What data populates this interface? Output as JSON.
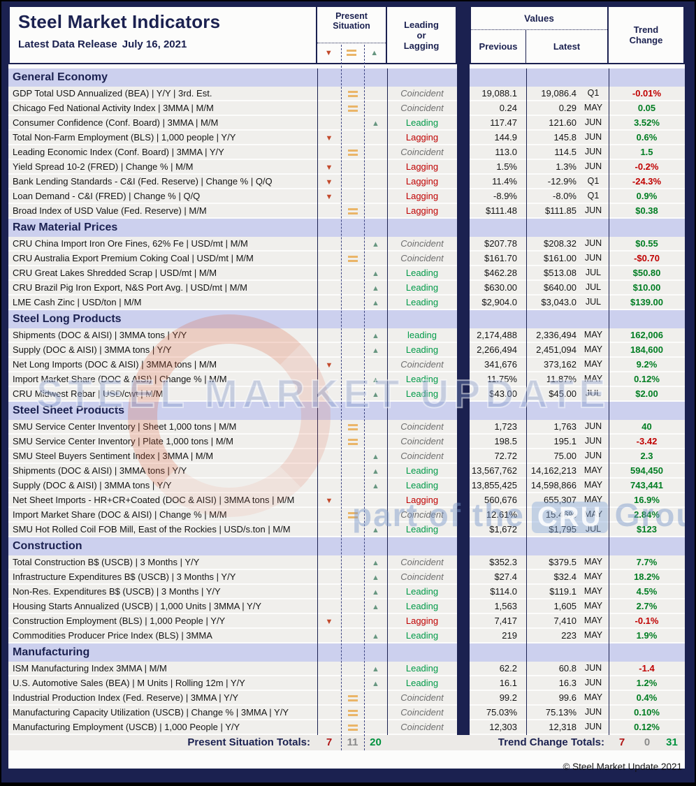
{
  "header": {
    "title": "Steel Market Indicators",
    "subtitle_label": "Latest Data Release",
    "subtitle_date": "July 16, 2021",
    "col_present_situation": "Present Situation",
    "col_leading_lagging": "Leading or Lagging",
    "col_values": "Values",
    "col_previous": "Previous",
    "col_latest": "Latest",
    "col_trend_change": "Trend Change"
  },
  "colors": {
    "frame_navy": "#1b2150",
    "section_bg": "#ccd0ee",
    "row_bg": "#f0efec",
    "leading_green": "#009a48",
    "lagging_red": "#c00000",
    "coincident_gray": "#6e6e6e",
    "trend_up_green": "#007d22",
    "trend_down_red": "#c00000",
    "arrow_down_red": "#c2492b",
    "arrow_equal_tan": "#eab568",
    "arrow_up_green": "#679680"
  },
  "sections": [
    {
      "title": "General Economy",
      "rows": [
        {
          "name": "GDP Total USD Annualized (BEA) | Y/Y | 3rd. Est.",
          "arrow": "equal",
          "classification": "Coincident",
          "previous": "19,088.1",
          "latest": "19,086.4",
          "period": "Q1",
          "trend": "-0.01%"
        },
        {
          "name": "Chicago Fed National Activity Index | 3MMA | M/M",
          "arrow": "equal",
          "classification": "Coincident",
          "previous": "0.24",
          "latest": "0.29",
          "period": "MAY",
          "trend": "0.05"
        },
        {
          "name": "Consumer Confidence (Conf. Board) | 3MMA | M/M",
          "arrow": "up",
          "classification": "Leading",
          "previous": "117.47",
          "latest": "121.60",
          "period": "JUN",
          "trend": "3.52%"
        },
        {
          "name": "Total Non-Farm Employment (BLS) | 1,000 people | Y/Y",
          "arrow": "down",
          "classification": "Lagging",
          "previous": "144.9",
          "latest": "145.8",
          "period": "JUN",
          "trend": "0.6%"
        },
        {
          "name": "Leading Economic Index (Conf. Board) | 3MMA | Y/Y",
          "arrow": "equal",
          "classification": "Coincident",
          "previous": "113.0",
          "latest": "114.5",
          "period": "JUN",
          "trend": "1.5"
        },
        {
          "name": "Yield Spread 10-2 (FRED) | Change % | M/M",
          "arrow": "down",
          "classification": "Lagging",
          "previous": "1.5%",
          "latest": "1.3%",
          "period": "JUN",
          "trend": "-0.2%"
        },
        {
          "name": "Bank Lending Standards - C&I (Fed. Reserve) | Change % | Q/Q",
          "arrow": "down",
          "classification": "Lagging",
          "previous": "11.4%",
          "latest": "-12.9%",
          "period": "Q1",
          "trend": "-24.3%"
        },
        {
          "name": "Loan Demand - C&I (FRED) | Change % | Q/Q",
          "arrow": "down",
          "classification": "Lagging",
          "previous": "-8.9%",
          "latest": "-8.0%",
          "period": "Q1",
          "trend": "0.9%"
        },
        {
          "name": "Broad Index of USD Value (Fed. Reserve) | M/M",
          "arrow": "equal",
          "classification": "Lagging",
          "previous": "$111.48",
          "latest": "$111.85",
          "period": "JUN",
          "trend": "$0.38"
        }
      ]
    },
    {
      "title": "Raw Material Prices",
      "rows": [
        {
          "name": "CRU China Import Iron Ore Fines, 62% Fe | USD/mt | M/M",
          "arrow": "up",
          "classification": "Coincident",
          "previous": "$207.78",
          "latest": "$208.32",
          "period": "JUN",
          "trend": "$0.55"
        },
        {
          "name": "CRU Australia Export Premium Coking Coal | USD/mt | M/M",
          "arrow": "equal",
          "classification": "Coincident",
          "previous": "$161.70",
          "latest": "$161.00",
          "period": "JUN",
          "trend": "-$0.70"
        },
        {
          "name": "CRU Great Lakes Shredded Scrap | USD/mt | M/M",
          "arrow": "up",
          "classification": "Leading",
          "previous": "$462.28",
          "latest": "$513.08",
          "period": "JUL",
          "trend": "$50.80"
        },
        {
          "name": "CRU Brazil Pig Iron Export, N&S Port Avg. | USD/mt | M/M",
          "arrow": "up",
          "classification": "Leading",
          "previous": "$630.00",
          "latest": "$640.00",
          "period": "JUL",
          "trend": "$10.00"
        },
        {
          "name": "LME Cash Zinc | USD/ton | M/M",
          "arrow": "up",
          "classification": "Leading",
          "previous": "$2,904.0",
          "latest": "$3,043.0",
          "period": "JUL",
          "trend": "$139.00"
        }
      ]
    },
    {
      "title": "Steel Long Products",
      "rows": [
        {
          "name": "Shipments (DOC & AISI) | 3MMA tons | Y/Y",
          "arrow": "up",
          "classification": "leading",
          "previous": "2,174,488",
          "latest": "2,336,494",
          "period": "MAY",
          "trend": "162,006"
        },
        {
          "name": "Supply (DOC & AISI) | 3MMA tons | Y/Y",
          "arrow": "up",
          "classification": "Leading",
          "previous": "2,266,494",
          "latest": "2,451,094",
          "period": "MAY",
          "trend": "184,600"
        },
        {
          "name": "Net Long Imports (DOC & AISI) | 3MMA tons | M/M",
          "arrow": "down",
          "classification": "Coincident",
          "previous": "341,676",
          "latest": "373,162",
          "period": "MAY",
          "trend": "9.2%"
        },
        {
          "name": "Import Market Share (DOC & AISI) | Change % | M/M",
          "arrow": "up",
          "classification": "Leading",
          "previous": "11.75%",
          "latest": "11.87%",
          "period": "MAY",
          "trend": "0.12%"
        },
        {
          "name": "CRU Midwest Rebar | USD/cwt | M/M",
          "arrow": "up",
          "classification": "Leading",
          "previous": "$43.00",
          "latest": "$45.00",
          "period": "JUL",
          "trend": "$2.00"
        }
      ]
    },
    {
      "title": "Steel Sheet Products",
      "rows": [
        {
          "name": "SMU Service Center Inventory | Sheet 1,000 tons | M/M",
          "arrow": "equal",
          "classification": "Coincident",
          "previous": "1,723",
          "latest": "1,763",
          "period": "JUN",
          "trend": "40"
        },
        {
          "name": "SMU Service Center Inventory | Plate 1,000 tons | M/M",
          "arrow": "equal",
          "classification": "Coincident",
          "previous": "198.5",
          "latest": "195.1",
          "period": "JUN",
          "trend": "-3.42"
        },
        {
          "name": "SMU Steel Buyers Sentiment Index | 3MMA | M/M",
          "arrow": "up",
          "classification": "Coincident",
          "previous": "72.72",
          "latest": "75.00",
          "period": "JUN",
          "trend": "2.3"
        },
        {
          "name": "Shipments (DOC & AISI) | 3MMA tons | Y/Y",
          "arrow": "up",
          "classification": "Leading",
          "previous": "13,567,762",
          "latest": "14,162,213",
          "period": "MAY",
          "trend": "594,450"
        },
        {
          "name": "Supply (DOC & AISI) | 3MMA tons | Y/Y",
          "arrow": "up",
          "classification": "Leading",
          "previous": "13,855,425",
          "latest": "14,598,866",
          "period": "MAY",
          "trend": "743,441"
        },
        {
          "name": "Net Sheet Imports - HR+CR+Coated (DOC & AISI) | 3MMA tons | M/M",
          "arrow": "down",
          "classification": "Lagging",
          "previous": "560,676",
          "latest": "655,307",
          "period": "MAY",
          "trend": "16.9%"
        },
        {
          "name": "Import Market Share (DOC & AISI) | Change % | M/M",
          "arrow": "equal",
          "classification": "Coincident",
          "previous": "12.61%",
          "latest": "15.46%",
          "period": "MAY",
          "trend": "2.84%"
        },
        {
          "name": "SMU Hot Rolled Coil FOB Mill, East of the Rockies | USD/s.ton | M/M",
          "arrow": "up",
          "classification": "Leading",
          "previous": "$1,672",
          "latest": "$1,795",
          "period": "JUL",
          "trend": "$123"
        }
      ]
    },
    {
      "title": "Construction",
      "rows": [
        {
          "name": "Total Construction B$ (USCB) | 3 Months | Y/Y",
          "arrow": "up",
          "classification": "Coincident",
          "previous": "$352.3",
          "latest": "$379.5",
          "period": "MAY",
          "trend": "7.7%"
        },
        {
          "name": "Infrastructure Expenditures B$ (USCB) | 3 Months | Y/Y",
          "arrow": "up",
          "classification": "Coincident",
          "previous": "$27.4",
          "latest": "$32.4",
          "period": "MAY",
          "trend": "18.2%"
        },
        {
          "name": "Non-Res. Expenditures B$ (USCB) | 3 Months | Y/Y",
          "arrow": "up",
          "classification": "Leading",
          "previous": "$114.0",
          "latest": "$119.1",
          "period": "MAY",
          "trend": "4.5%"
        },
        {
          "name": "Housing Starts Annualized (USCB) | 1,000 Units | 3MMA | Y/Y",
          "arrow": "up",
          "classification": "Leading",
          "previous": "1,563",
          "latest": "1,605",
          "period": "MAY",
          "trend": "2.7%"
        },
        {
          "name": "Construction Employment (BLS) | 1,000 People | Y/Y",
          "arrow": "down",
          "classification": "Lagging",
          "previous": "7,417",
          "latest": "7,410",
          "period": "MAY",
          "trend": "-0.1%"
        },
        {
          "name": "Commodities Producer Price Index (BLS) | 3MMA",
          "arrow": "up",
          "classification": "Leading",
          "previous": "219",
          "latest": "223",
          "period": "MAY",
          "trend": "1.9%"
        }
      ]
    },
    {
      "title": "Manufacturing",
      "rows": [
        {
          "name": "ISM Manufacturing Index 3MMA | M/M",
          "arrow": "up",
          "classification": "Leading",
          "previous": "62.2",
          "latest": "60.8",
          "period": "JUN",
          "trend": "-1.4"
        },
        {
          "name": "U.S. Automotive Sales (BEA) | M Units | Rolling 12m | Y/Y",
          "arrow": "up",
          "classification": "Leading",
          "previous": "16.1",
          "latest": "16.3",
          "period": "JUN",
          "trend": "1.2%"
        },
        {
          "name": "Industrial Production Index (Fed. Reserve) | 3MMA | Y/Y",
          "arrow": "equal",
          "classification": "Coincident",
          "previous": "99.2",
          "latest": "99.6",
          "period": "MAY",
          "trend": "0.4%"
        },
        {
          "name": "Manufacturing Capacity Utilization (USCB) | Change % | 3MMA | Y/Y",
          "arrow": "equal",
          "classification": "Coincident",
          "previous": "75.03%",
          "latest": "75.13%",
          "period": "JUN",
          "trend": "0.10%"
        },
        {
          "name": "Manufacturing Employment (USCB) | 1,000 People | Y/Y",
          "arrow": "equal",
          "classification": "Coincident",
          "previous": "12,303",
          "latest": "12,318",
          "period": "JUN",
          "trend": "0.12%"
        }
      ]
    }
  ],
  "totals": {
    "present_label": "Present Situation Totals:",
    "present": {
      "down": "7",
      "equal": "11",
      "up": "20"
    },
    "trend_label": "Trend Change Totals:",
    "trend": {
      "down": "7",
      "equal": "0",
      "up": "31"
    }
  },
  "footer": {
    "copyright": "© Steel Market Update 2021"
  },
  "watermark": {
    "main": "STEEL MARKET UPDATE",
    "sub_prefix": "part of the",
    "sub_logo": "CRU",
    "sub_suffix": "Group"
  }
}
